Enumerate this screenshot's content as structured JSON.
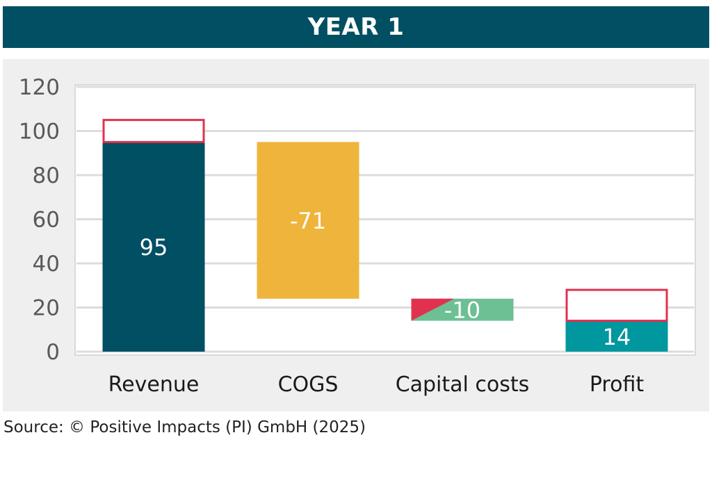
{
  "header": {
    "title": "YEAR 1"
  },
  "footer": {
    "source": "Source: © Positive Impacts (PI) GmbH (2025)"
  },
  "colors": {
    "header_bg": "#014f63",
    "revenue": "#014f63",
    "cogs": "#efb43c",
    "capital_costs": "#6dbf94",
    "capital_costs_accent": "#e0324f",
    "profit": "#00979e",
    "outline": "#e0324f",
    "panel_bg": "#efefef",
    "grid": "#dcdcdc",
    "tick_text": "#595959",
    "category_text": "#1a1a1a"
  },
  "chart_data": {
    "type": "waterfall",
    "title": "YEAR 1",
    "xlabel": "",
    "ylabel": "",
    "ylim": [
      0,
      120
    ],
    "yticks": [
      0,
      20,
      40,
      60,
      80,
      100,
      120
    ],
    "grid": true,
    "legend": "none",
    "categories": [
      "Revenue",
      "COGS",
      "Capital costs",
      "Profit"
    ],
    "bars": [
      {
        "category": "Revenue",
        "value": 95,
        "base": 0,
        "top": 95,
        "label": "95",
        "colorKey": "revenue",
        "outline_box": {
          "from": 95,
          "to": 105
        }
      },
      {
        "category": "COGS",
        "value": -71,
        "base": 24,
        "top": 95,
        "label": "-71",
        "colorKey": "cogs"
      },
      {
        "category": "Capital costs",
        "value": -10,
        "base": 14,
        "top": 24,
        "label": "-10",
        "colorKey": "capital_costs",
        "accent_triangle": true
      },
      {
        "category": "Profit",
        "value": 14,
        "base": 0,
        "top": 14,
        "label": "14",
        "colorKey": "profit",
        "outline_box": {
          "from": 14,
          "to": 28
        }
      }
    ]
  }
}
